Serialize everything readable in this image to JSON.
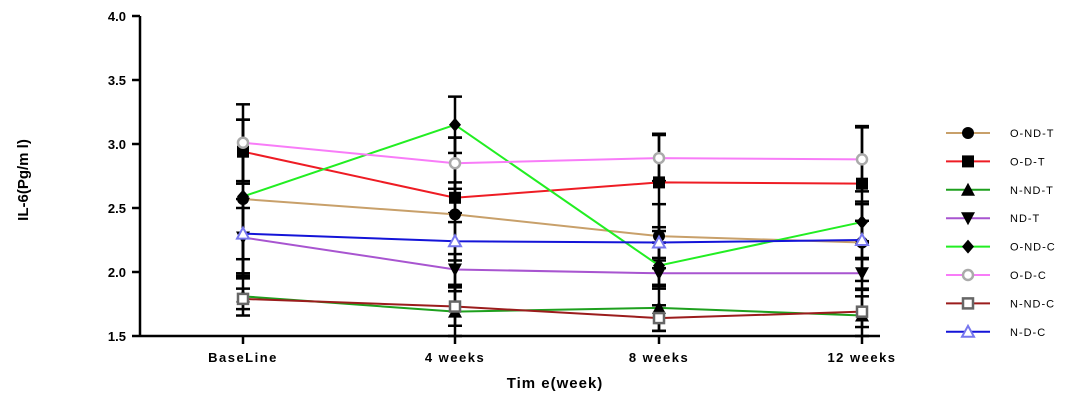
{
  "chart_data": {
    "type": "line",
    "xlabel": "Tim e(week)",
    "ylabel": "IL-6(Pg/m l)",
    "categories": [
      "BaseLine",
      "4 weeks",
      "8 weeks",
      "12 weeks"
    ],
    "ylim": [
      1.5,
      4.0
    ],
    "yticks": [
      "1.5",
      "2.0",
      "2.5",
      "3.0",
      "3.5",
      "4.0"
    ],
    "grid": false,
    "legend_position": "right",
    "series": [
      {
        "name": "O-ND-T",
        "color": "#c8a06a",
        "marker": "circle",
        "values": [
          2.57,
          2.45,
          2.28,
          2.23
        ],
        "errors": [
          0.62,
          0.6,
          0.25,
          0.3
        ]
      },
      {
        "name": "O-D-T",
        "color": "#ee1c24",
        "marker": "square",
        "values": [
          2.94,
          2.58,
          2.7,
          2.69
        ],
        "errors": [
          0.25,
          0.12,
          0.38,
          0.45
        ]
      },
      {
        "name": "N-ND-T",
        "color": "#1ea01e",
        "marker": "triangle-up",
        "values": [
          1.81,
          1.69,
          1.72,
          1.66
        ],
        "errors": [
          0.15,
          0.2,
          0.18,
          0.2
        ]
      },
      {
        "name": "ND-T",
        "color": "#a855d0",
        "marker": "triangle-down",
        "values": [
          2.27,
          2.02,
          1.99,
          1.99
        ],
        "errors": [
          0.3,
          0.12,
          0.1,
          0.12
        ]
      },
      {
        "name": "O-ND-C",
        "color": "#22ee22",
        "marker": "diamond",
        "values": [
          2.59,
          3.15,
          2.05,
          2.39
        ],
        "errors": [
          0.6,
          0.22,
          0.18,
          0.16
        ]
      },
      {
        "name": "O-D-C",
        "color": "#f87cf8",
        "marker": "circle-open",
        "values": [
          3.01,
          2.85,
          2.89,
          2.88
        ],
        "errors": [
          0.3,
          0.2,
          0.18,
          0.25
        ]
      },
      {
        "name": "N-ND-C",
        "color": "#9b1c1c",
        "marker": "square-open",
        "values": [
          1.79,
          1.73,
          1.64,
          1.69
        ],
        "errors": [
          0.08,
          0.15,
          0.1,
          0.12
        ]
      },
      {
        "name": "N-D-C",
        "color": "#1414d8",
        "marker": "triangle-open",
        "values": [
          2.3,
          2.24,
          2.23,
          2.25
        ],
        "errors": [
          0.2,
          0.15,
          0.12,
          0.15
        ]
      }
    ]
  }
}
